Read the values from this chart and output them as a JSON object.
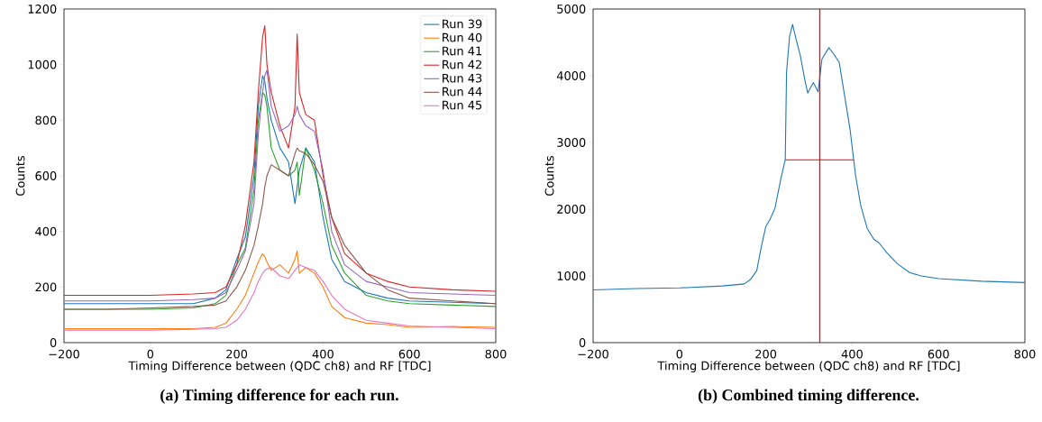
{
  "chart_data": [
    {
      "type": "line",
      "xlabel": "Timing Difference between (QDC ch8) and RF [TDC]",
      "ylabel": "Counts",
      "annotations": [
        "(a) Timing difference for each run."
      ],
      "xlim": [
        -200,
        800
      ],
      "ylim": [
        0,
        1200
      ],
      "xticks": [
        {
          "value": -200,
          "label": "−200"
        },
        0,
        200,
        400,
        600,
        800
      ],
      "yticks": [
        0,
        200,
        400,
        600,
        800,
        1000,
        1200
      ],
      "legend": "top right",
      "grid": false,
      "x": [
        -200,
        -100,
        0,
        100,
        150,
        175,
        200,
        220,
        240,
        250,
        260,
        265,
        270,
        280,
        300,
        320,
        335,
        340,
        345,
        360,
        380,
        400,
        420,
        450,
        500,
        550,
        600,
        700,
        800
      ],
      "series": [
        {
          "name": "Run 39",
          "color": "#1f77b4",
          "values": [
            140,
            140,
            140,
            140,
            160,
            190,
            300,
            380,
            600,
            850,
            960,
            940,
            880,
            800,
            700,
            650,
            500,
            560,
            620,
            700,
            650,
            450,
            300,
            220,
            180,
            160,
            150,
            145,
            140
          ]
        },
        {
          "name": "Run 40",
          "color": "#ff7f0e",
          "values": [
            50,
            50,
            50,
            50,
            55,
            70,
            120,
            170,
            250,
            290,
            320,
            310,
            290,
            260,
            280,
            250,
            300,
            330,
            250,
            270,
            250,
            200,
            130,
            90,
            70,
            65,
            55,
            58,
            55
          ]
        },
        {
          "name": "Run 41",
          "color": "#2ca02c",
          "values": [
            120,
            120,
            120,
            125,
            140,
            170,
            280,
            340,
            550,
            800,
            900,
            890,
            850,
            700,
            620,
            600,
            620,
            650,
            530,
            700,
            620,
            500,
            350,
            250,
            170,
            150,
            140,
            135,
            130
          ]
        },
        {
          "name": "Run 42",
          "color": "#d62728",
          "values": [
            170,
            170,
            170,
            175,
            180,
            200,
            280,
            420,
            650,
            900,
            1100,
            1140,
            1000,
            900,
            780,
            700,
            850,
            1110,
            900,
            820,
            800,
            600,
            450,
            320,
            250,
            220,
            200,
            190,
            185
          ]
        },
        {
          "name": "Run 43",
          "color": "#9467bd",
          "values": [
            150,
            150,
            150,
            155,
            160,
            180,
            260,
            330,
            500,
            750,
            900,
            960,
            980,
            850,
            760,
            780,
            820,
            850,
            820,
            780,
            760,
            620,
            400,
            280,
            220,
            200,
            180,
            175,
            170
          ]
        },
        {
          "name": "Run 44",
          "color": "#8c564b",
          "values": [
            120,
            120,
            125,
            130,
            135,
            150,
            200,
            260,
            350,
            420,
            500,
            560,
            600,
            640,
            620,
            600,
            680,
            700,
            690,
            680,
            640,
            580,
            450,
            350,
            250,
            190,
            160,
            150,
            140
          ]
        },
        {
          "name": "Run 45",
          "color": "#e377c2",
          "values": [
            45,
            45,
            45,
            48,
            50,
            55,
            80,
            120,
            180,
            220,
            250,
            260,
            265,
            270,
            240,
            230,
            260,
            270,
            280,
            270,
            260,
            220,
            170,
            120,
            80,
            70,
            60,
            55,
            50
          ]
        }
      ]
    },
    {
      "type": "line",
      "xlabel": "Timing Difference between (QDC ch8) and RF [TDC]",
      "ylabel": "Counts",
      "annotations": [
        "(b) Combined timing difference."
      ],
      "xlim": [
        -200,
        800
      ],
      "ylim": [
        0,
        5000
      ],
      "xticks": [
        {
          "value": -200,
          "label": "−200"
        },
        0,
        200,
        400,
        600,
        800
      ],
      "yticks": [
        0,
        1000,
        2000,
        3000,
        4000,
        5000
      ],
      "grid": false,
      "ref_lines": [
        {
          "axis": "x",
          "value": 325,
          "color": "#ff0000"
        }
      ],
      "series": [
        {
          "color": "#1f77b4",
          "x": [
            -200,
            -100,
            0,
            100,
            150,
            165,
            179,
            190,
            200,
            210,
            221,
            235,
            245,
            248,
            255,
            262,
            270,
            280,
            290,
            297,
            310,
            321,
            330,
            346,
            360,
            370,
            380,
            395,
            408,
            420,
            435,
            450,
            463,
            480,
            505,
            533,
            560,
            600,
            700,
            800
          ],
          "values": [
            790,
            810,
            820,
            850,
            880,
            950,
            1080,
            1450,
            1740,
            1850,
            2010,
            2460,
            2740,
            4050,
            4590,
            4770,
            4550,
            4300,
            3950,
            3740,
            3900,
            3760,
            4250,
            4420,
            4300,
            4200,
            3800,
            3200,
            2500,
            2050,
            1710,
            1550,
            1490,
            1350,
            1180,
            1050,
            1000,
            960,
            920,
            900
          ]
        },
        {
          "type": "line",
          "color": "#ff0000",
          "x": [
            245,
            404
          ],
          "values": [
            2740,
            2740
          ]
        }
      ]
    }
  ]
}
